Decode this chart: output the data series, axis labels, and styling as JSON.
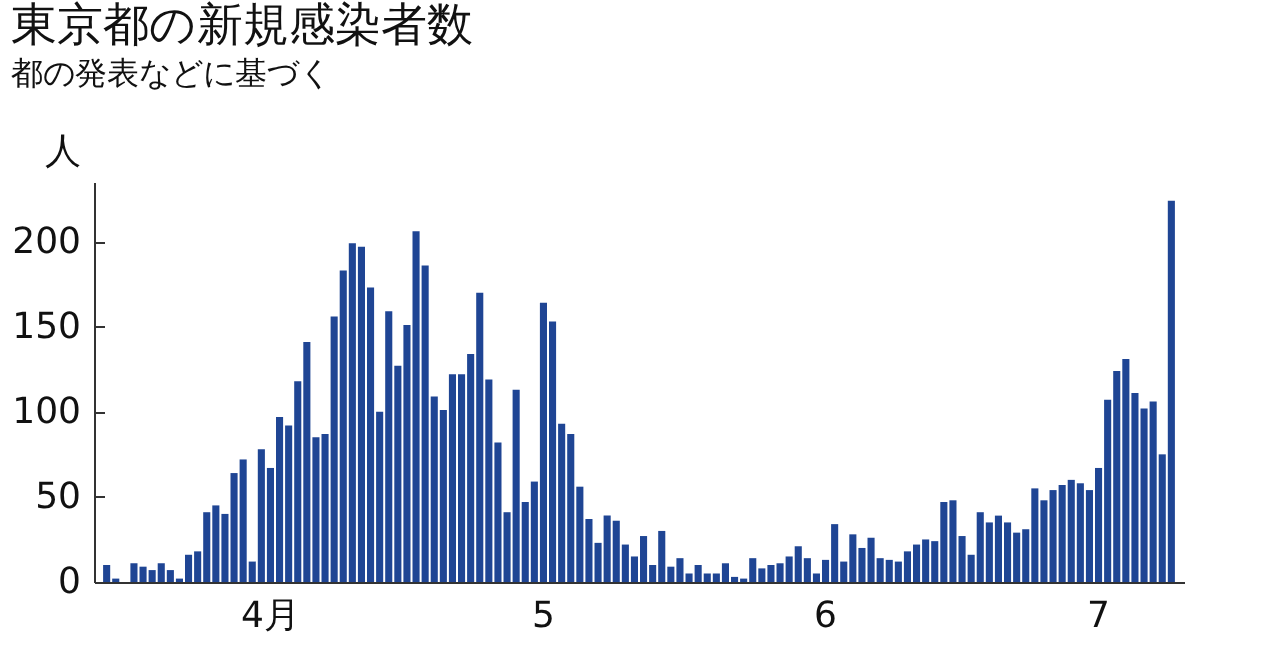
{
  "chart_data": {
    "type": "bar",
    "title": "東京都の新規感染者数",
    "subtitle": "都の発表などに基づく",
    "ylabel": "人",
    "categories": [
      null,
      null,
      null,
      null,
      null,
      null,
      null,
      null,
      null,
      null,
      null,
      null,
      null,
      null,
      null,
      null,
      null,
      null,
      "4月",
      null,
      null,
      null,
      null,
      null,
      null,
      null,
      null,
      null,
      null,
      null,
      null,
      null,
      null,
      null,
      null,
      null,
      null,
      null,
      null,
      null,
      null,
      null,
      null,
      null,
      null,
      null,
      null,
      null,
      "5",
      null,
      null,
      null,
      null,
      null,
      null,
      null,
      null,
      null,
      null,
      null,
      null,
      null,
      null,
      null,
      null,
      null,
      null,
      null,
      null,
      null,
      null,
      null,
      null,
      null,
      null,
      null,
      null,
      null,
      null,
      "6",
      null,
      null,
      null,
      null,
      null,
      null,
      null,
      null,
      null,
      null,
      null,
      null,
      null,
      null,
      null,
      null,
      null,
      null,
      null,
      null,
      null,
      null,
      null,
      null,
      null,
      null,
      null,
      null,
      null,
      "7",
      null,
      null,
      null,
      null,
      null,
      null,
      null,
      null
    ],
    "values": [
      10,
      2,
      0,
      11,
      9,
      7,
      11,
      7,
      2,
      16,
      18,
      41,
      45,
      40,
      64,
      72,
      12,
      78,
      67,
      97,
      92,
      118,
      141,
      85,
      87,
      156,
      183,
      199,
      197,
      173,
      100,
      159,
      127,
      151,
      206,
      186,
      109,
      101,
      122,
      122,
      134,
      170,
      119,
      82,
      41,
      113,
      47,
      59,
      164,
      153,
      93,
      87,
      56,
      37,
      23,
      39,
      36,
      22,
      15,
      27,
      10,
      30,
      9,
      14,
      5,
      10,
      5,
      5,
      11,
      3,
      2,
      14,
      8,
      10,
      11,
      15,
      21,
      14,
      5,
      13,
      34,
      12,
      28,
      20,
      26,
      14,
      13,
      12,
      18,
      22,
      25,
      24,
      47,
      48,
      27,
      16,
      41,
      35,
      39,
      35,
      29,
      31,
      55,
      48,
      54,
      57,
      60,
      58,
      54,
      67,
      107,
      124,
      131,
      111,
      102,
      106,
      75,
      224
    ],
    "color": "#1f4594",
    "ylim": [
      0,
      235
    ],
    "yticks": [
      0,
      50,
      100,
      150,
      200
    ]
  }
}
